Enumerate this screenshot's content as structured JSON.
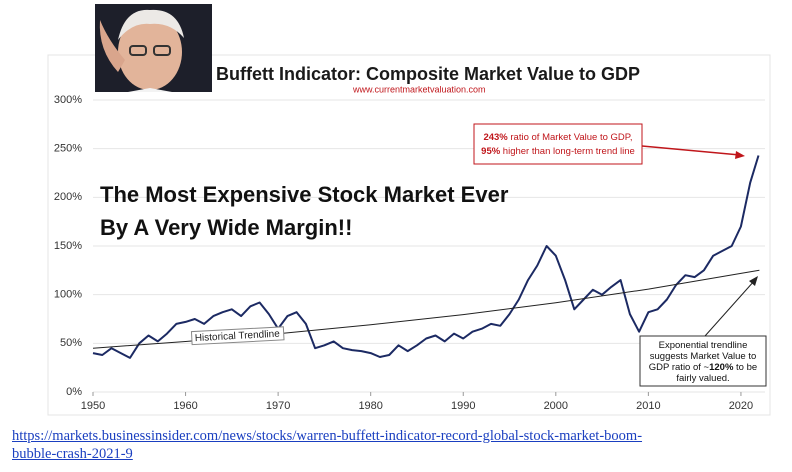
{
  "chart_data": {
    "type": "line",
    "title": "Buffett Indicator: Composite Market Value to GDP",
    "subtitle": "www.currentmarketvaluation.com",
    "headline": [
      "The Most Expensive Stock Market Ever",
      "By A Very Wide Margin!!"
    ],
    "series": [
      {
        "color": "#1c2a63",
        "x": [
          1950,
          1951,
          1952,
          1953,
          1954,
          1955,
          1956,
          1957,
          1958,
          1959,
          1960,
          1961,
          1962,
          1963,
          1964,
          1965,
          1966,
          1967,
          1968,
          1969,
          1970,
          1971,
          1972,
          1973,
          1974,
          1975,
          1976,
          1977,
          1978,
          1979,
          1980,
          1981,
          1982,
          1983,
          1984,
          1985,
          1986,
          1987,
          1988,
          1989,
          1990,
          1991,
          1992,
          1993,
          1994,
          1995,
          1996,
          1997,
          1998,
          1999,
          2000,
          2001,
          2002,
          2003,
          2004,
          2005,
          2006,
          2007,
          2008,
          2009,
          2010,
          2011,
          2012,
          2013,
          2014,
          2015,
          2016,
          2017,
          2018,
          2019,
          2020,
          2021,
          2021.9
        ],
        "values": [
          40,
          38,
          45,
          40,
          35,
          50,
          58,
          52,
          60,
          70,
          72,
          75,
          70,
          78,
          82,
          85,
          78,
          88,
          92,
          80,
          65,
          78,
          82,
          70,
          45,
          48,
          52,
          45,
          43,
          42,
          40,
          36,
          38,
          48,
          42,
          48,
          55,
          58,
          52,
          60,
          55,
          62,
          65,
          70,
          68,
          80,
          95,
          115,
          130,
          150,
          140,
          115,
          85,
          95,
          105,
          100,
          108,
          115,
          80,
          62,
          82,
          85,
          95,
          110,
          120,
          118,
          125,
          140,
          145,
          150,
          170,
          215,
          243
        ]
      },
      {
        "name": "Historical Trendline",
        "color": "#222222",
        "x": [
          1950,
          1960,
          1970,
          1980,
          1990,
          2000,
          2010,
          2020,
          2022
        ],
        "values": [
          45,
          51.9,
          59.8,
          69,
          79.5,
          91.7,
          105.7,
          121.9,
          125
        ]
      }
    ],
    "xlim": [
      1950,
      2022.6
    ],
    "xticks": [
      1950,
      1960,
      1970,
      1980,
      1990,
      2000,
      2010,
      2020
    ],
    "ylim": [
      0,
      300
    ],
    "yticks": [
      {
        "value": 0,
        "label": "0%"
      },
      {
        "value": 50,
        "label": "50%"
      },
      {
        "value": 100,
        "label": "100%"
      },
      {
        "value": 150,
        "label": "150%"
      },
      {
        "value": 200,
        "label": "200%"
      },
      {
        "value": 250,
        "label": "250%"
      },
      {
        "value": 300,
        "label": "300%"
      }
    ],
    "grid": true,
    "red_note": [
      [
        "243%",
        " ratio of Market Value to GDP,"
      ],
      [
        "95%",
        " higher than long-term trend line"
      ]
    ],
    "black_note": [
      [
        "Exponential trendline"
      ],
      [
        "suggests Market Value to"
      ],
      [
        "GDP ratio of ~",
        "120%",
        " to be"
      ],
      [
        "fairly valued."
      ]
    ]
  },
  "source_link": [
    "https://markets.businessinsider.com/news/stocks/warren-buffett-indicator-record-global-stock-market-boom-",
    "bubble-crash-2021-9"
  ]
}
